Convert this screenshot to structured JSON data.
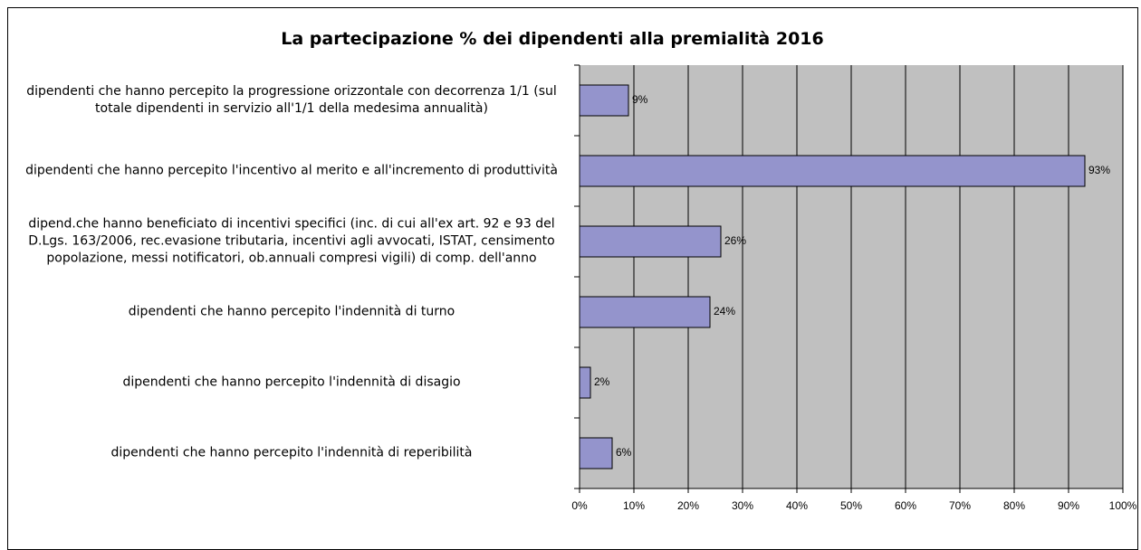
{
  "chart_data": {
    "type": "barh",
    "title": "La partecipazione % dei dipendenti alla premialità 2016",
    "categories": [
      "dipendenti che hanno percepito la progressione orizzontale con decorrenza 1/1 (sul totale dipendenti in servizio all'1/1 della medesima annualità)",
      "dipendenti che hanno percepito l'incentivo al merito e all'incremento di produttività",
      "dipend.che hanno beneficiato di incentivi specifici (inc. di cui all'ex art. 92 e 93 del D.Lgs. 163/2006, rec.evasione tributaria, incentivi agli avvocati, ISTAT, censimento popolazione, messi notificatori, ob.annuali compresi vigili) di comp. dell'anno",
      "dipendenti che hanno percepito l'indennità di turno",
      "dipendenti che hanno percepito l'indennità di disagio",
      "dipendenti che hanno percepito l'indennità di reperibilità"
    ],
    "values": [
      9,
      93,
      26,
      24,
      2,
      6
    ],
    "value_labels": [
      "9%",
      "93%",
      "26%",
      "24%",
      "2%",
      "6%"
    ],
    "color": "#9494cc",
    "background": "#c0c0c0",
    "xlim": [
      0,
      100
    ],
    "xticks": [
      {
        "value": 0,
        "label": "0%"
      },
      {
        "value": 10,
        "label": "10%"
      },
      {
        "value": 20,
        "label": "20%"
      },
      {
        "value": 30,
        "label": "30%"
      },
      {
        "value": 40,
        "label": "40%"
      },
      {
        "value": 50,
        "label": "50%"
      },
      {
        "value": 60,
        "label": "60%"
      },
      {
        "value": 70,
        "label": "70%"
      },
      {
        "value": 80,
        "label": "80%"
      },
      {
        "value": 90,
        "label": "90%"
      },
      {
        "value": 100,
        "label": "100%"
      }
    ],
    "grid": true
  }
}
